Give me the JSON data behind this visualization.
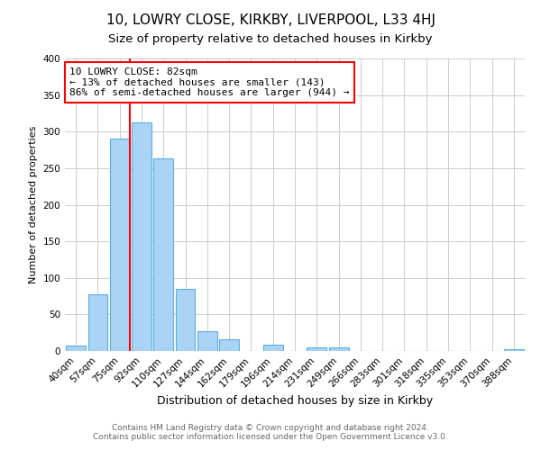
{
  "title": "10, LOWRY CLOSE, KIRKBY, LIVERPOOL, L33 4HJ",
  "subtitle": "Size of property relative to detached houses in Kirkby",
  "xlabel": "Distribution of detached houses by size in Kirkby",
  "ylabel": "Number of detached properties",
  "bar_labels": [
    "40sqm",
    "57sqm",
    "75sqm",
    "92sqm",
    "110sqm",
    "127sqm",
    "144sqm",
    "162sqm",
    "179sqm",
    "196sqm",
    "214sqm",
    "231sqm",
    "249sqm",
    "266sqm",
    "283sqm",
    "301sqm",
    "318sqm",
    "335sqm",
    "353sqm",
    "370sqm",
    "388sqm"
  ],
  "bar_heights": [
    8,
    77,
    291,
    313,
    263,
    85,
    27,
    16,
    0,
    9,
    0,
    5,
    5,
    0,
    0,
    0,
    0,
    0,
    0,
    0,
    2
  ],
  "bar_color": "#aad4f5",
  "bar_edge_color": "#5aaee0",
  "property_line_color": "red",
  "property_line_x": 2.45,
  "annotation_text": "10 LOWRY CLOSE: 82sqm\n← 13% of detached houses are smaller (143)\n86% of semi-detached houses are larger (944) →",
  "annotation_box_color": "white",
  "annotation_box_edge": "red",
  "ylim": [
    0,
    400
  ],
  "yticks": [
    0,
    50,
    100,
    150,
    200,
    250,
    300,
    350,
    400
  ],
  "footer": "Contains HM Land Registry data © Crown copyright and database right 2024.\nContains public sector information licensed under the Open Government Licence v3.0.",
  "title_fontsize": 11,
  "subtitle_fontsize": 9.5,
  "xlabel_fontsize": 9,
  "ylabel_fontsize": 8,
  "tick_fontsize": 7.5,
  "annotation_fontsize": 8,
  "footer_fontsize": 6.5
}
